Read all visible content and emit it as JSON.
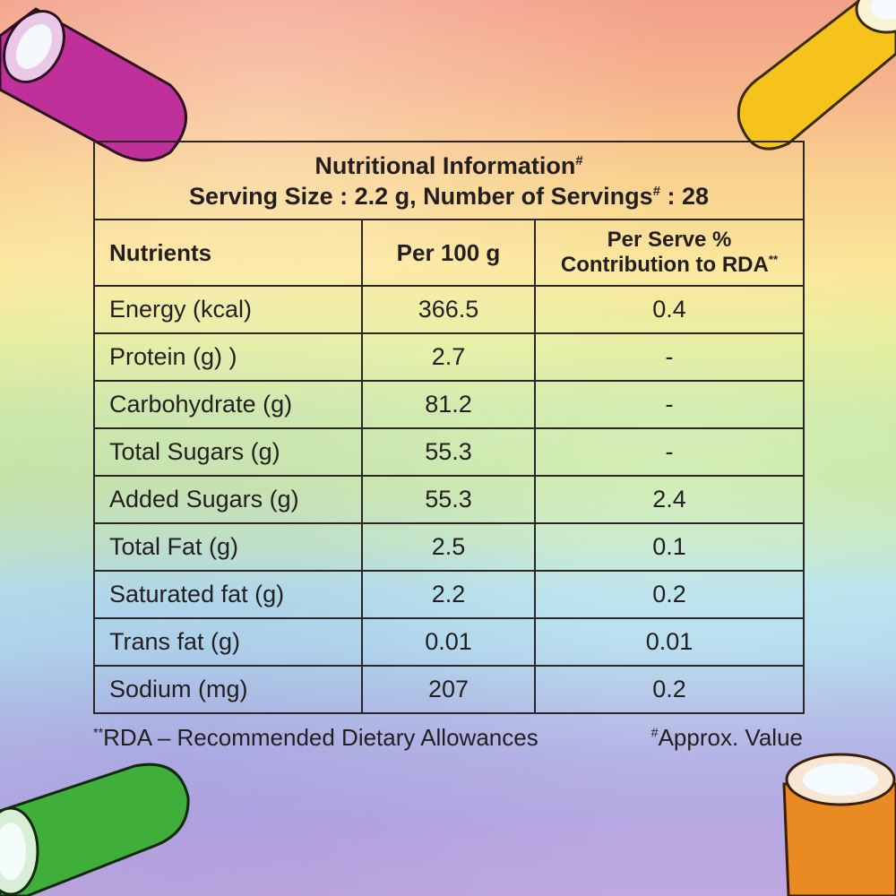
{
  "title": "Nutritional Information",
  "title_mark": "#",
  "serving_prefix": "Serving Size : 2.2 g, Number of Servings",
  "serving_mark": "#",
  "serving_suffix": " : 28",
  "headers": {
    "nutrients": "Nutrients",
    "per100": "Per 100 g",
    "rda_line1": "Per Serve %",
    "rda_line2": "Contribution to RDA",
    "rda_mark": "**"
  },
  "rows": [
    {
      "name": "Energy (kcal)",
      "per100": "366.5",
      "rda": "0.4"
    },
    {
      "name": "Protein (g) )",
      "per100": "2.7",
      "rda": "-"
    },
    {
      "name": "Carbohydrate (g)",
      "per100": "81.2",
      "rda": "-"
    },
    {
      "name": "Total Sugars (g)",
      "per100": "55.3",
      "rda": "-"
    },
    {
      "name": "Added Sugars (g)",
      "per100": "55.3",
      "rda": "2.4"
    },
    {
      "name": "Total Fat (g)",
      "per100": "2.5",
      "rda": "0.1"
    },
    {
      "name": "Saturated fat (g)",
      "per100": "2.2",
      "rda": "0.2"
    },
    {
      "name": "Trans fat (g)",
      "per100": "0.01",
      "rda": "0.01"
    },
    {
      "name": "Sodium (mg)",
      "per100": "207",
      "rda": "0.2"
    }
  ],
  "footnotes": {
    "rda_mark": "**",
    "rda_text": "RDA – Recommended Dietary Allowances",
    "approx_mark": "#",
    "approx_text": "Approx. Value"
  },
  "colors": {
    "candy_purple": "#c0309a",
    "candy_yellow": "#f6c21c",
    "candy_green": "#3fae3a",
    "candy_orange": "#e98a22",
    "line": "#2a2526"
  }
}
